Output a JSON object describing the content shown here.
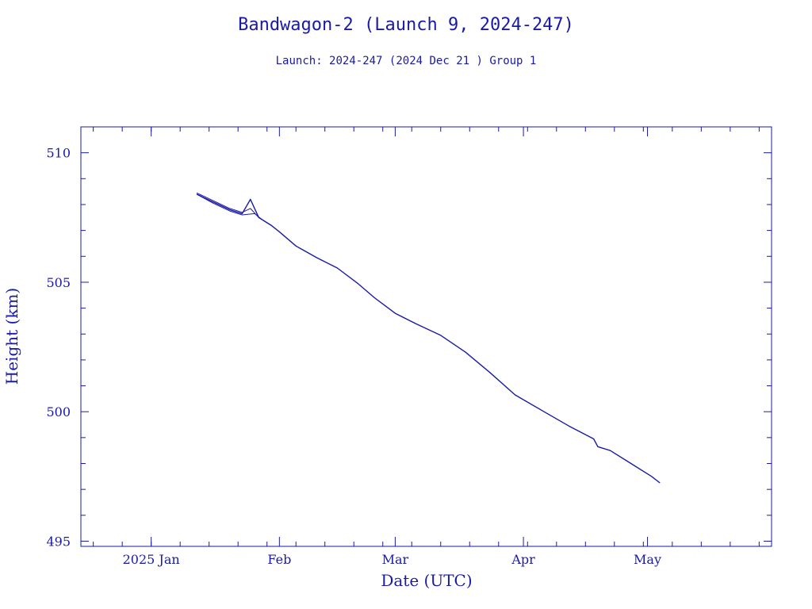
{
  "chart_data": {
    "type": "line",
    "title": "Bandwagon-2 (Launch 9, 2024-247)",
    "subtitle": "Launch: 2024-247  (2024 Dec 21 )  Group 1",
    "xlabel": "Date (UTC)",
    "ylabel": "Height (km)",
    "xlim": [
      "2024-12-15",
      "2025-05-31"
    ],
    "ylim": [
      494.8,
      511
    ],
    "x_ticks": [
      {
        "date": "2025-01-01",
        "label": "2025 Jan"
      },
      {
        "date": "2025-02-01",
        "label": "Feb"
      },
      {
        "date": "2025-03-01",
        "label": "Mar"
      },
      {
        "date": "2025-04-01",
        "label": "Apr"
      },
      {
        "date": "2025-05-01",
        "label": "May"
      }
    ],
    "y_ticks": [
      {
        "value": 495,
        "label": "495"
      },
      {
        "value": 500,
        "label": "500"
      },
      {
        "value": 505,
        "label": "505"
      },
      {
        "value": 510,
        "label": "510"
      }
    ],
    "grid": false,
    "series": [
      {
        "points": [
          [
            "2025-01-12",
            508.4
          ],
          [
            "2025-01-16",
            508.1
          ],
          [
            "2025-01-20",
            507.8
          ],
          [
            "2025-01-23",
            507.65
          ],
          [
            "2025-01-25",
            508.2
          ],
          [
            "2025-01-27",
            507.5
          ],
          [
            "2025-01-30",
            507.2
          ],
          [
            "2025-02-01",
            506.95
          ],
          [
            "2025-02-05",
            506.4
          ],
          [
            "2025-02-10",
            505.95
          ],
          [
            "2025-02-15",
            505.55
          ],
          [
            "2025-02-20",
            504.95
          ],
          [
            "2025-02-24",
            504.4
          ],
          [
            "2025-03-01",
            503.8
          ],
          [
            "2025-03-06",
            503.4
          ],
          [
            "2025-03-12",
            502.95
          ],
          [
            "2025-03-18",
            502.3
          ],
          [
            "2025-03-24",
            501.5
          ],
          [
            "2025-03-30",
            500.65
          ],
          [
            "2025-04-06",
            500.0
          ],
          [
            "2025-04-12",
            499.45
          ],
          [
            "2025-04-18",
            498.95
          ],
          [
            "2025-04-19",
            498.65
          ],
          [
            "2025-04-22",
            498.5
          ],
          [
            "2025-04-27",
            498.0
          ],
          [
            "2025-05-02",
            497.5
          ],
          [
            "2025-05-04",
            497.25
          ]
        ]
      },
      {
        "points": [
          [
            "2025-01-12",
            508.45
          ],
          [
            "2025-01-16",
            508.15
          ],
          [
            "2025-01-20",
            507.85
          ],
          [
            "2025-01-23",
            507.7
          ],
          [
            "2025-01-25",
            507.85
          ],
          [
            "2025-01-27",
            507.5
          ],
          [
            "2025-01-30",
            507.2
          ]
        ]
      },
      {
        "points": [
          [
            "2025-01-12",
            508.4
          ],
          [
            "2025-01-16",
            508.05
          ],
          [
            "2025-01-20",
            507.75
          ],
          [
            "2025-01-23",
            507.6
          ],
          [
            "2025-01-26",
            507.65
          ],
          [
            "2025-01-28",
            507.4
          ],
          [
            "2025-01-30",
            507.2
          ]
        ]
      }
    ]
  }
}
